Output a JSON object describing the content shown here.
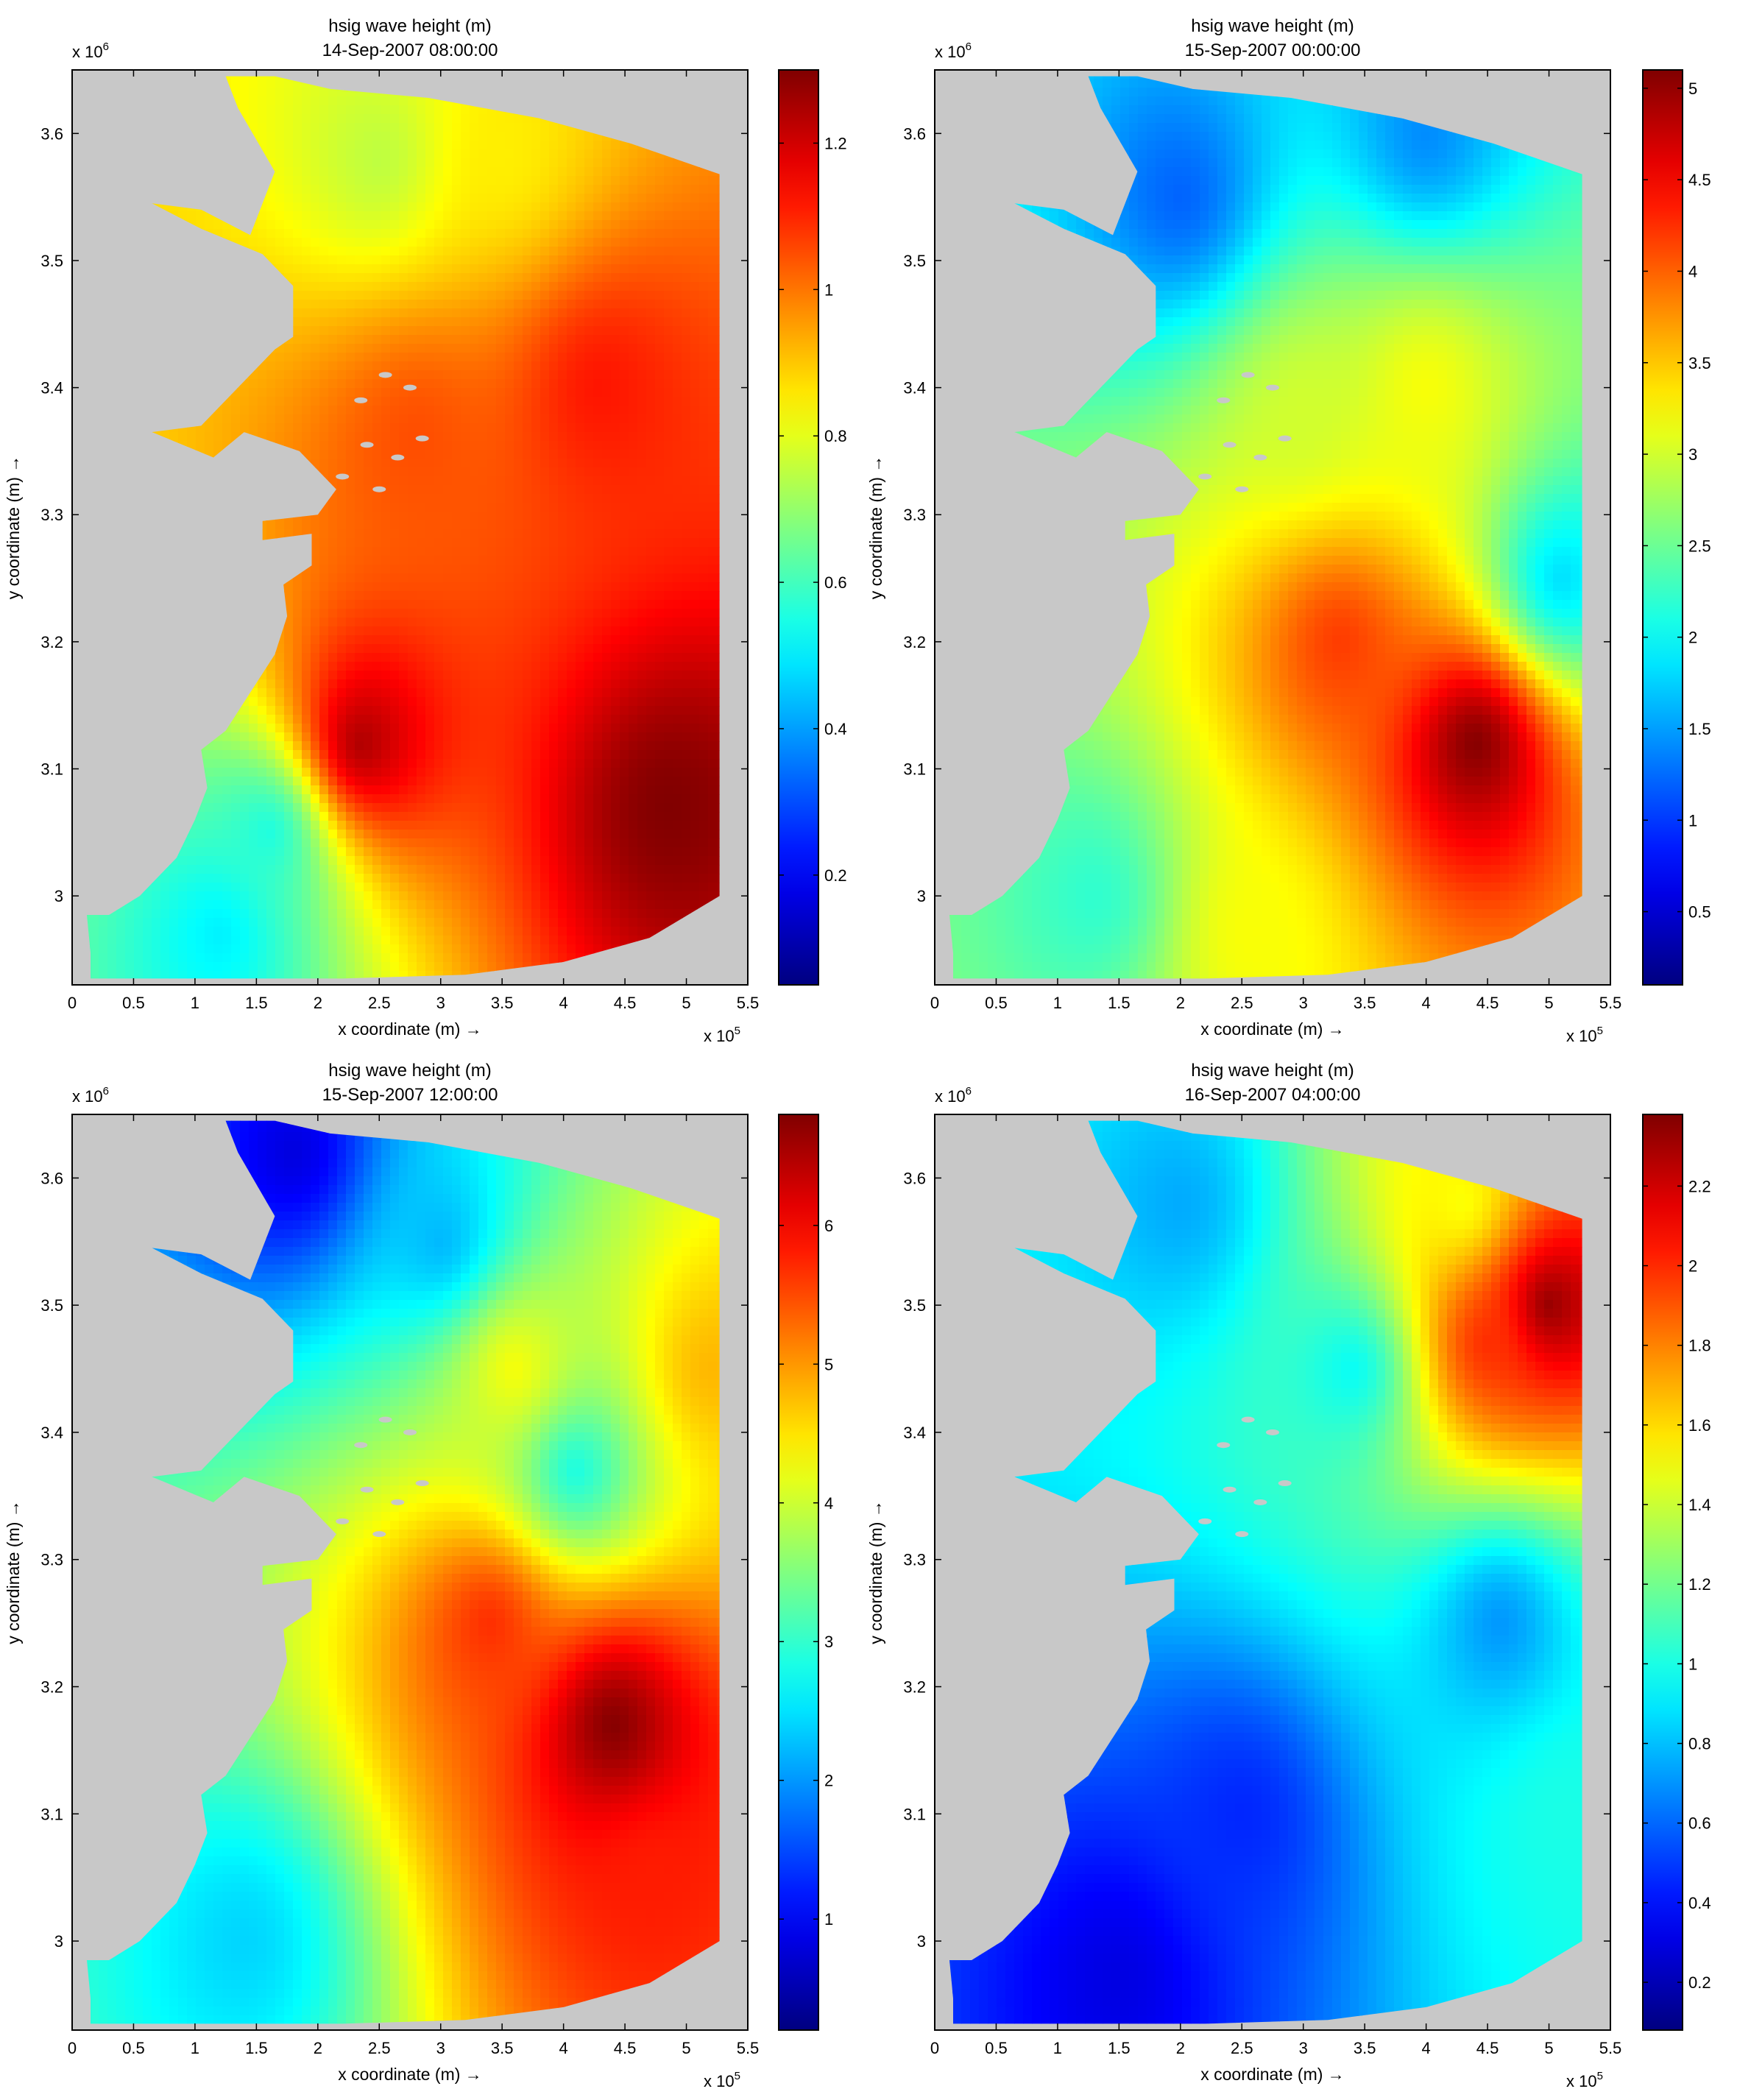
{
  "figure": {
    "panel_count": 4
  },
  "colors": {
    "land_gray": "#c8c8c8",
    "axis": "#000000",
    "colormap": "jet"
  },
  "chart_data": [
    {
      "type": "heatmap",
      "title": "hsig wave height (m)",
      "subtitle": "14-Sep-2007 08:00:00",
      "xlabel": "x coordinate (m) →",
      "ylabel": "y coordinate (m) →",
      "x_exponent": "x 10",
      "x_exponent_power": "5",
      "y_exponent": "x 10",
      "y_exponent_power": "6",
      "xlim": [
        0,
        5.5
      ],
      "ylim": [
        2.93,
        3.65
      ],
      "xticks": [
        "0",
        "0.5",
        "1",
        "1.5",
        "2",
        "2.5",
        "3",
        "3.5",
        "4",
        "4.5",
        "5",
        "5.5"
      ],
      "yticks": [
        "3",
        "3.1",
        "3.2",
        "3.3",
        "3.4",
        "3.5",
        "3.6"
      ],
      "colorbar": {
        "min": 0.05,
        "max": 1.3,
        "ticks": [
          "0.2",
          "0.4",
          "0.6",
          "0.8",
          "1",
          "1.2"
        ],
        "tick_values": [
          0.2,
          0.4,
          0.6,
          0.8,
          1.0,
          1.2
        ]
      },
      "field_features": [
        {
          "x": 4.85,
          "y": 3.07,
          "value": 1.3
        },
        {
          "x": 2.35,
          "y": 3.12,
          "value": 1.25
        },
        {
          "x": 2.8,
          "y": 3.36,
          "value": 1.05
        },
        {
          "x": 2.5,
          "y": 3.58,
          "value": 0.75
        },
        {
          "x": 3.5,
          "y": 3.58,
          "value": 0.85
        },
        {
          "x": 1.6,
          "y": 3.05,
          "value": 0.55
        },
        {
          "x": 1.2,
          "y": 2.97,
          "value": 0.5
        },
        {
          "x": 4.3,
          "y": 3.4,
          "value": 1.12
        }
      ]
    },
    {
      "type": "heatmap",
      "title": "hsig wave height (m)",
      "subtitle": "15-Sep-2007 00:00:00",
      "xlabel": "x coordinate (m) →",
      "ylabel": "y coordinate (m) →",
      "x_exponent": "x 10",
      "x_exponent_power": "5",
      "y_exponent": "x 10",
      "y_exponent_power": "6",
      "xlim": [
        0,
        5.5
      ],
      "ylim": [
        2.93,
        3.65
      ],
      "xticks": [
        "0",
        "0.5",
        "1",
        "1.5",
        "2",
        "2.5",
        "3",
        "3.5",
        "4",
        "4.5",
        "5",
        "5.5"
      ],
      "yticks": [
        "3",
        "3.1",
        "3.2",
        "3.3",
        "3.4",
        "3.5",
        "3.6"
      ],
      "colorbar": {
        "min": 0.1,
        "max": 5.1,
        "ticks": [
          "0.5",
          "1",
          "1.5",
          "2",
          "2.5",
          "3",
          "3.5",
          "4",
          "4.5",
          "5"
        ],
        "tick_values": [
          0.5,
          1,
          1.5,
          2,
          2.5,
          3,
          3.5,
          4,
          4.5,
          5
        ]
      },
      "field_features": [
        {
          "x": 4.4,
          "y": 3.12,
          "value": 5.1
        },
        {
          "x": 3.3,
          "y": 3.2,
          "value": 4.2
        },
        {
          "x": 3.0,
          "y": 3.38,
          "value": 3.0
        },
        {
          "x": 4.0,
          "y": 3.4,
          "value": 3.2
        },
        {
          "x": 2.0,
          "y": 3.55,
          "value": 1.2
        },
        {
          "x": 4.0,
          "y": 3.6,
          "value": 1.4
        },
        {
          "x": 5.1,
          "y": 3.25,
          "value": 1.8
        },
        {
          "x": 1.3,
          "y": 3.0,
          "value": 2.2
        },
        {
          "x": 2.6,
          "y": 2.97,
          "value": 3.2
        }
      ]
    },
    {
      "type": "heatmap",
      "title": "hsig wave height (m)",
      "subtitle": "15-Sep-2007 12:00:00",
      "xlabel": "x coordinate (m) →",
      "ylabel": "y coordinate (m) →",
      "x_exponent": "x 10",
      "x_exponent_power": "5",
      "y_exponent": "x 10",
      "y_exponent_power": "6",
      "xlim": [
        0,
        5.5
      ],
      "ylim": [
        2.93,
        3.65
      ],
      "xticks": [
        "0",
        "0.5",
        "1",
        "1.5",
        "2",
        "2.5",
        "3",
        "3.5",
        "4",
        "4.5",
        "5",
        "5.5"
      ],
      "yticks": [
        "3",
        "3.1",
        "3.2",
        "3.3",
        "3.4",
        "3.5",
        "3.6"
      ],
      "colorbar": {
        "min": 0.2,
        "max": 6.8,
        "ticks": [
          "1",
          "2",
          "3",
          "4",
          "5",
          "6"
        ],
        "tick_values": [
          1,
          2,
          3,
          4,
          5,
          6
        ]
      },
      "field_features": [
        {
          "x": 4.4,
          "y": 3.17,
          "value": 6.8
        },
        {
          "x": 3.4,
          "y": 3.25,
          "value": 5.7
        },
        {
          "x": 4.7,
          "y": 3.05,
          "value": 5.8
        },
        {
          "x": 3.6,
          "y": 3.45,
          "value": 4.3
        },
        {
          "x": 4.1,
          "y": 3.37,
          "value": 2.8
        },
        {
          "x": 3.0,
          "y": 3.55,
          "value": 2.2
        },
        {
          "x": 1.8,
          "y": 3.62,
          "value": 0.8
        },
        {
          "x": 1.4,
          "y": 3.0,
          "value": 2.4
        },
        {
          "x": 5.2,
          "y": 3.45,
          "value": 4.8
        }
      ]
    },
    {
      "type": "heatmap",
      "title": "hsig wave height (m)",
      "subtitle": "16-Sep-2007 04:00:00",
      "xlabel": "x coordinate (m) →",
      "ylabel": "y coordinate (m) →",
      "x_exponent": "x 10",
      "x_exponent_power": "5",
      "y_exponent": "x 10",
      "y_exponent_power": "6",
      "xlim": [
        0,
        5.5
      ],
      "ylim": [
        2.93,
        3.65
      ],
      "xticks": [
        "0",
        "0.5",
        "1",
        "1.5",
        "2",
        "2.5",
        "3",
        "3.5",
        "4",
        "4.5",
        "5",
        "5.5"
      ],
      "yticks": [
        "3",
        "3.1",
        "3.2",
        "3.3",
        "3.4",
        "3.5",
        "3.6"
      ],
      "colorbar": {
        "min": 0.08,
        "max": 2.38,
        "ticks": [
          "0.2",
          "0.4",
          "0.6",
          "0.8",
          "1",
          "1.2",
          "1.4",
          "1.6",
          "1.8",
          "2",
          "2.2"
        ],
        "tick_values": [
          0.2,
          0.4,
          0.6,
          0.8,
          1.0,
          1.2,
          1.4,
          1.6,
          1.8,
          2.0,
          2.2
        ]
      },
      "field_features": [
        {
          "x": 5.0,
          "y": 3.5,
          "value": 2.35
        },
        {
          "x": 4.5,
          "y": 3.47,
          "value": 2.0
        },
        {
          "x": 4.3,
          "y": 3.58,
          "value": 1.5
        },
        {
          "x": 3.4,
          "y": 3.45,
          "value": 0.95
        },
        {
          "x": 2.0,
          "y": 3.58,
          "value": 0.75
        },
        {
          "x": 4.6,
          "y": 3.25,
          "value": 0.7
        },
        {
          "x": 5.1,
          "y": 3.1,
          "value": 1.0
        },
        {
          "x": 2.5,
          "y": 3.1,
          "value": 0.45
        },
        {
          "x": 1.5,
          "y": 2.97,
          "value": 0.3
        }
      ]
    }
  ]
}
